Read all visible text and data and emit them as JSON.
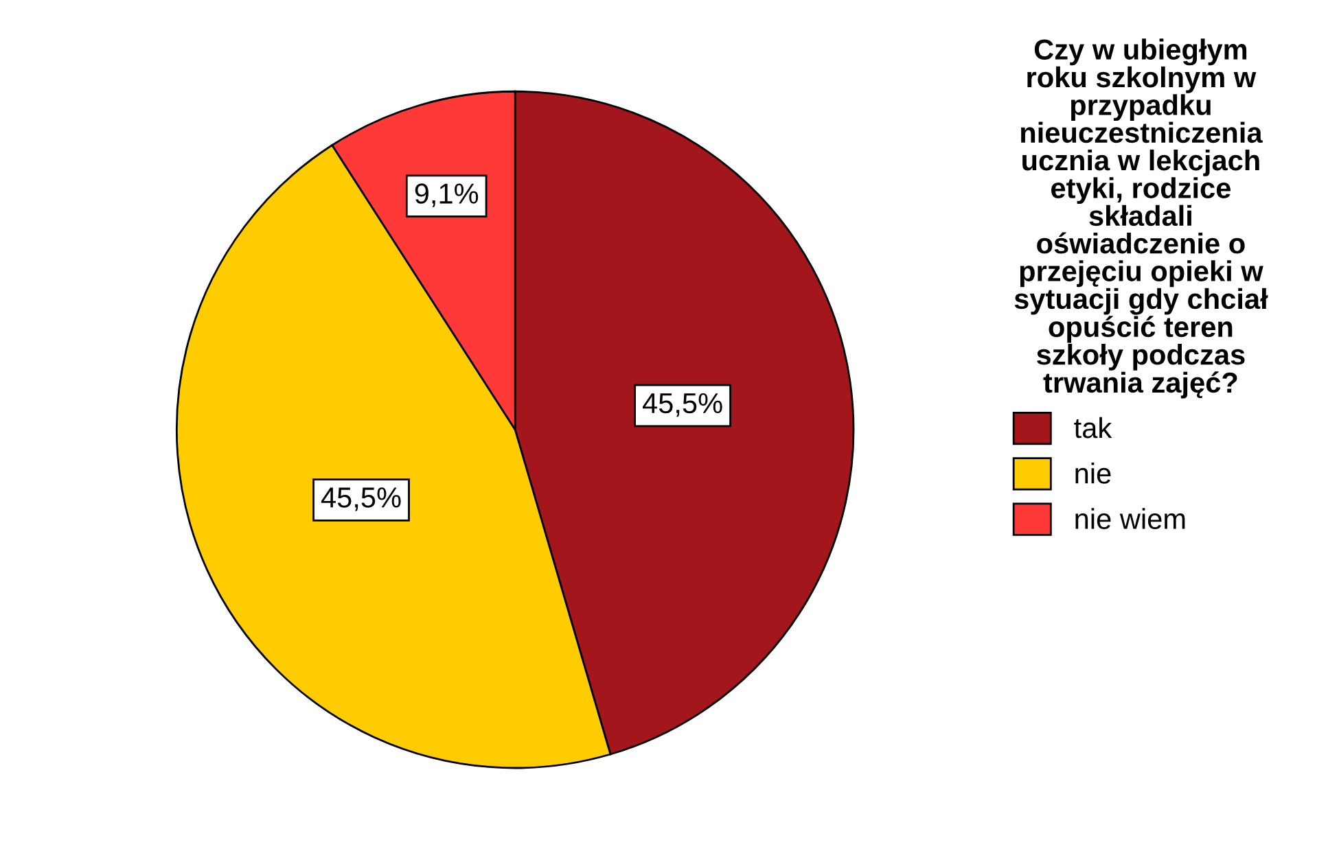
{
  "chart_data": {
    "type": "pie",
    "legend_title": "Czy w ubiegłym\nroku szkolnym w\nprzypadku\nnieuczestniczenia\nucznia w lekcjach\netyki, rodzice\nskładali\noświadczenie o\nprzejęciu opieki w\nsytuacji gdy chciał\nopuścić teren\nszkoły podczas\ntrwania zajęć?",
    "categories": [
      "tak",
      "nie",
      "nie wiem"
    ],
    "values": [
      45.5,
      45.5,
      9.1
    ],
    "value_labels": [
      "45,5%",
      "45,5%",
      "9,1%"
    ],
    "colors": [
      "#a3161c",
      "#ffcc00",
      "#ff3838"
    ],
    "legend": "right"
  }
}
